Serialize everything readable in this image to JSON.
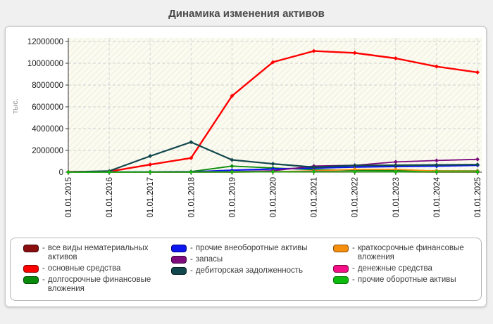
{
  "page": {
    "title": "Динамика изменения активов"
  },
  "legend": {
    "prefix": "-",
    "columns": [
      [
        0,
        1,
        2
      ],
      [
        3,
        4,
        5
      ],
      [
        6,
        7,
        8
      ]
    ]
  },
  "chart_data": {
    "type": "line",
    "title": "Динамика изменения активов",
    "ylabel": "тыс.",
    "xlabel": "",
    "grid": true,
    "legend_position": "bottom",
    "ylim": [
      0,
      12000000
    ],
    "yticks": [
      0,
      2000000,
      4000000,
      6000000,
      8000000,
      10000000,
      12000000
    ],
    "x": [
      "01.01.2015",
      "01.01.2016",
      "01.01.2017",
      "01.01.2018",
      "01.01.2019",
      "01.01.2020",
      "01.01.2021",
      "01.01.2022",
      "01.01.2023",
      "01.01.2024",
      "01.01.2025"
    ],
    "series": [
      {
        "name": "все виды нематериальных активов",
        "color": "#8b0e0e",
        "edge": "#3f0404",
        "values": [
          3000,
          3000,
          4000,
          10000,
          35000,
          45000,
          40000,
          35000,
          25000,
          15000,
          12000
        ]
      },
      {
        "name": "основные средства",
        "color": "#ff0000",
        "edge": "#8b0000",
        "values": [
          30000,
          60000,
          700000,
          1300000,
          7000000,
          10100000,
          11120000,
          10950000,
          10450000,
          9700000,
          9170000
        ]
      },
      {
        "name": "долгосрочные финансовые вложения",
        "color": "#0a8a0a",
        "edge": "#044d04",
        "values": [
          8000,
          12000,
          40000,
          60000,
          560000,
          390000,
          230000,
          180000,
          150000,
          130000,
          120000
        ]
      },
      {
        "name": "прочие внеоборотные активы",
        "color": "#0b16f0",
        "edge": "#000080",
        "values": [
          5000,
          8000,
          15000,
          25000,
          180000,
          290000,
          380000,
          470000,
          520000,
          560000,
          640000
        ]
      },
      {
        "name": "запасы",
        "color": "#7d0b7d",
        "edge": "#3d053d",
        "values": [
          5000,
          8000,
          15000,
          25000,
          45000,
          130000,
          560000,
          630000,
          940000,
          1070000,
          1180000
        ]
      },
      {
        "name": "дебиторская задолженность",
        "color": "#12474d",
        "edge": "#071f22",
        "values": [
          20000,
          100000,
          1480000,
          2760000,
          1130000,
          770000,
          460000,
          620000,
          640000,
          670000,
          700000
        ]
      },
      {
        "name": "краткосрочные финансовые вложения",
        "color": "#f78f0e",
        "edge": "#8a4d03",
        "values": [
          2000,
          3000,
          5000,
          8000,
          15000,
          40000,
          130000,
          260000,
          255000,
          110000,
          90000
        ]
      },
      {
        "name": "денежные средства",
        "color": "#f50f87",
        "edge": "#7a0742",
        "values": [
          1000,
          2000,
          3000,
          5000,
          12000,
          35000,
          90000,
          60000,
          45000,
          35000,
          45000
        ]
      },
      {
        "name": "прочие оборотные активы",
        "color": "#0fba0f",
        "edge": "#067806",
        "values": [
          2000,
          3000,
          5000,
          8000,
          20000,
          35000,
          45000,
          40000,
          35000,
          30000,
          35000
        ]
      }
    ]
  }
}
